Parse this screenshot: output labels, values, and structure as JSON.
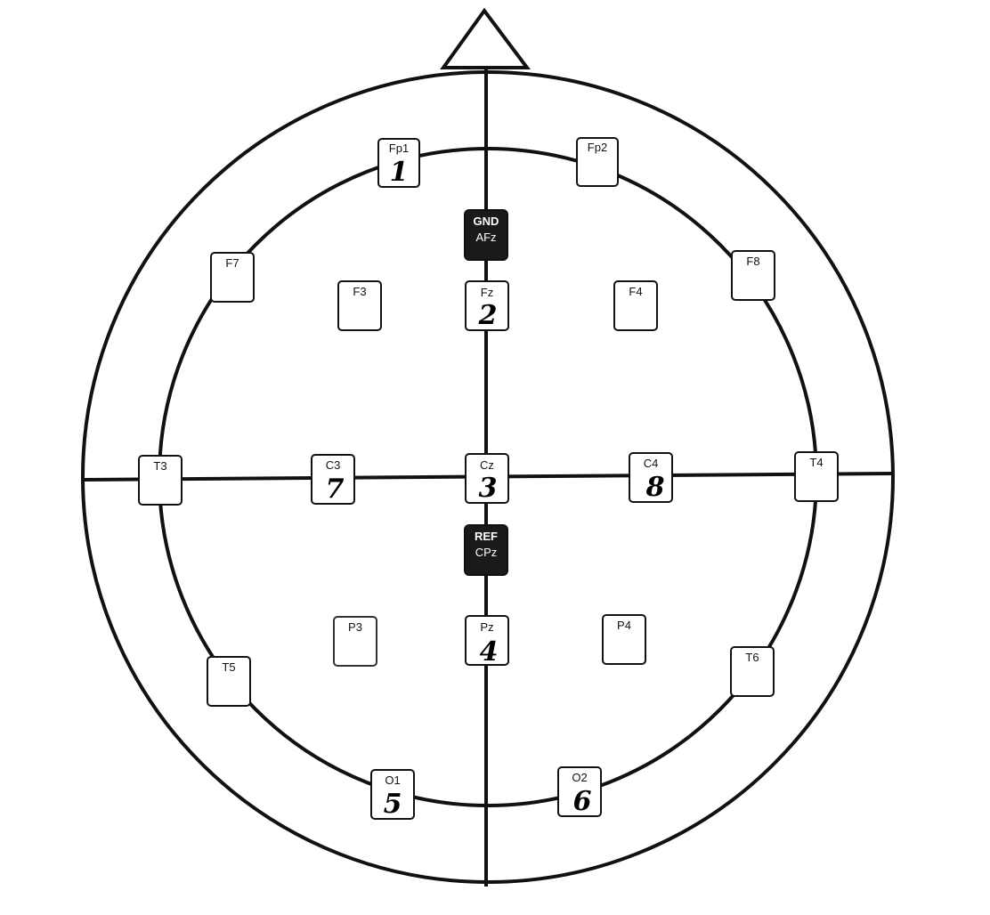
{
  "diagram": {
    "electrodes": [
      {
        "id": "fp1",
        "label": "Fp1",
        "number": "1"
      },
      {
        "id": "fp2",
        "label": "Fp2",
        "number": ""
      },
      {
        "id": "f7",
        "label": "F7",
        "number": ""
      },
      {
        "id": "f3",
        "label": "F3",
        "number": ""
      },
      {
        "id": "fz",
        "label": "Fz",
        "number": "2"
      },
      {
        "id": "f4",
        "label": "F4",
        "number": ""
      },
      {
        "id": "f8",
        "label": "F8",
        "number": ""
      },
      {
        "id": "t3",
        "label": "T3",
        "number": ""
      },
      {
        "id": "c3",
        "label": "C3",
        "number": "7"
      },
      {
        "id": "cz",
        "label": "Cz",
        "number": "3"
      },
      {
        "id": "c4",
        "label": "C4",
        "number": "8"
      },
      {
        "id": "t4",
        "label": "T4",
        "number": ""
      },
      {
        "id": "p3",
        "label": "P3",
        "number": ""
      },
      {
        "id": "pz",
        "label": "Pz",
        "number": "4"
      },
      {
        "id": "p4",
        "label": "P4",
        "number": ""
      },
      {
        "id": "t5",
        "label": "T5",
        "number": ""
      },
      {
        "id": "t6",
        "label": "T6",
        "number": ""
      },
      {
        "id": "o1",
        "label": "O1",
        "number": "5"
      },
      {
        "id": "o2",
        "label": "O2",
        "number": "6"
      }
    ],
    "special": [
      {
        "id": "gnd",
        "top": "GND",
        "bottom": "AFz"
      },
      {
        "id": "ref",
        "top": "REF",
        "bottom": "CPz"
      }
    ],
    "colors": {
      "stroke": "#111111",
      "special_fill": "#1a1a1a",
      "background": "#ffffff"
    }
  }
}
